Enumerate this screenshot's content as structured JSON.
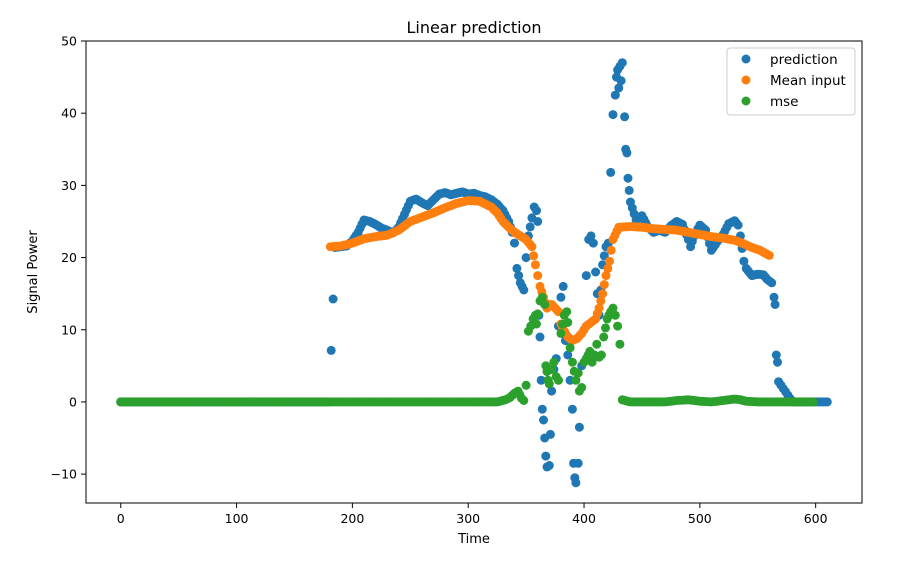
{
  "chart_data": {
    "type": "scatter",
    "title": "Linear prediction",
    "xlabel": "Time",
    "ylabel": "Signal Power",
    "xlim": [
      -30,
      640
    ],
    "ylim": [
      -14,
      50
    ],
    "xticks": [
      0,
      100,
      200,
      300,
      400,
      500,
      600
    ],
    "yticks": [
      -10,
      0,
      10,
      20,
      30,
      40,
      50
    ],
    "grid": false,
    "legend_position": "top-right",
    "series": [
      {
        "name": "prediction",
        "color": "#1f77b4",
        "points": [
          [
            0,
            0
          ],
          [
            60,
            0
          ],
          [
            120,
            0
          ],
          [
            180,
            0
          ],
          [
            185,
            21.4
          ],
          [
            195,
            21.6
          ],
          [
            200,
            22.3
          ],
          [
            205,
            23.5
          ],
          [
            210,
            25.2
          ],
          [
            215,
            25.0
          ],
          [
            220,
            24.6
          ],
          [
            225,
            24.1
          ],
          [
            230,
            23.8
          ],
          [
            235,
            23.4
          ],
          [
            240,
            24.2
          ],
          [
            245,
            26.0
          ],
          [
            250,
            27.8
          ],
          [
            255,
            28.1
          ],
          [
            260,
            27.6
          ],
          [
            265,
            27.2
          ],
          [
            270,
            28.0
          ],
          [
            275,
            28.8
          ],
          [
            280,
            29.0
          ],
          [
            285,
            28.7
          ],
          [
            290,
            28.9
          ],
          [
            295,
            29.1
          ],
          [
            300,
            28.8
          ],
          [
            305,
            28.9
          ],
          [
            310,
            28.6
          ],
          [
            315,
            28.4
          ],
          [
            320,
            28.0
          ],
          [
            325,
            27.4
          ],
          [
            330,
            26.5
          ],
          [
            335,
            25.0
          ],
          [
            338,
            23.5
          ],
          [
            340,
            22.0
          ],
          [
            342,
            18.5
          ],
          [
            345,
            16.5
          ],
          [
            348,
            15.5
          ],
          [
            350,
            20.0
          ],
          [
            352,
            23.0
          ],
          [
            355,
            25.5
          ],
          [
            357,
            27.0
          ],
          [
            359,
            26.5
          ],
          [
            360,
            25.0
          ],
          [
            361,
            12.0
          ],
          [
            362,
            9.0
          ],
          [
            363,
            3.0
          ],
          [
            364,
            -1.0
          ],
          [
            365,
            -2.5
          ],
          [
            366,
            -5.0
          ],
          [
            367,
            -7.5
          ],
          [
            368,
            -9.0
          ],
          [
            370,
            -8.8
          ],
          [
            371,
            -4.5
          ],
          [
            372,
            1.5
          ],
          [
            374,
            4.5
          ],
          [
            376,
            6.0
          ],
          [
            378,
            10.5
          ],
          [
            380,
            14.5
          ],
          [
            382,
            16.0
          ],
          [
            384,
            8.5
          ],
          [
            386,
            6.5
          ],
          [
            388,
            3.0
          ],
          [
            390,
            -1.0
          ],
          [
            391,
            -8.5
          ],
          [
            392,
            -10.5
          ],
          [
            393,
            -11.2
          ],
          [
            395,
            -8.5
          ],
          [
            396,
            -3.5
          ],
          [
            398,
            5.0
          ],
          [
            400,
            10.0
          ],
          [
            402,
            17.5
          ],
          [
            404,
            22.5
          ],
          [
            406,
            23.0
          ],
          [
            408,
            22.0
          ],
          [
            410,
            18.0
          ],
          [
            413,
            12.0
          ],
          [
            416,
            19.0
          ],
          [
            419,
            21.5
          ],
          [
            421,
            22.0
          ],
          [
            423,
            31.8
          ],
          [
            425,
            39.8
          ],
          [
            427,
            42.5
          ],
          [
            428,
            45.0
          ],
          [
            429,
            46.0
          ],
          [
            430,
            43.5
          ],
          [
            431,
            46.5
          ],
          [
            432,
            44.5
          ],
          [
            433,
            47.0
          ],
          [
            435,
            39.5
          ],
          [
            436,
            35.0
          ],
          [
            437,
            34.5
          ],
          [
            438,
            31.0
          ],
          [
            439,
            29.3
          ],
          [
            440,
            27.7
          ],
          [
            445,
            25.2
          ],
          [
            450,
            25.8
          ],
          [
            455,
            24.3
          ],
          [
            460,
            23.5
          ],
          [
            465,
            23.8
          ],
          [
            470,
            23.5
          ],
          [
            475,
            24.4
          ],
          [
            480,
            25.0
          ],
          [
            485,
            24.6
          ],
          [
            490,
            22.5
          ],
          [
            492,
            21.5
          ],
          [
            495,
            23.0
          ],
          [
            500,
            24.5
          ],
          [
            505,
            23.8
          ],
          [
            510,
            21.0
          ],
          [
            515,
            22.2
          ],
          [
            520,
            23.2
          ],
          [
            525,
            24.7
          ],
          [
            530,
            25.1
          ],
          [
            533,
            24.5
          ],
          [
            535,
            23.0
          ],
          [
            538,
            19.5
          ],
          [
            540,
            18.5
          ],
          [
            545,
            17.5
          ],
          [
            550,
            17.7
          ],
          [
            555,
            17.6
          ],
          [
            558,
            17.0
          ],
          [
            562,
            16.5
          ],
          [
            564,
            14.5
          ],
          [
            565,
            13.5
          ],
          [
            566,
            6.5
          ],
          [
            567,
            5.5
          ],
          [
            568,
            2.8
          ],
          [
            580,
            0
          ],
          [
            595,
            0
          ],
          [
            610,
            0
          ]
        ]
      },
      {
        "name": "Mean input",
        "color": "#ff7f0e",
        "points": [
          [
            181,
            21.5
          ],
          [
            190,
            21.6
          ],
          [
            200,
            22.0
          ],
          [
            210,
            22.6
          ],
          [
            220,
            22.9
          ],
          [
            230,
            23.1
          ],
          [
            240,
            23.8
          ],
          [
            250,
            25.0
          ],
          [
            260,
            25.6
          ],
          [
            270,
            26.2
          ],
          [
            280,
            26.9
          ],
          [
            290,
            27.5
          ],
          [
            300,
            27.9
          ],
          [
            310,
            27.8
          ],
          [
            320,
            27.0
          ],
          [
            325,
            26.2
          ],
          [
            330,
            25.0
          ],
          [
            335,
            24.2
          ],
          [
            340,
            23.5
          ],
          [
            345,
            23.0
          ],
          [
            350,
            22.5
          ],
          [
            355,
            21.5
          ],
          [
            358,
            19.0
          ],
          [
            360,
            17.5
          ],
          [
            362,
            16.0
          ],
          [
            365,
            14.5
          ],
          [
            368,
            13.0
          ],
          [
            370,
            13.5
          ],
          [
            372,
            13.5
          ],
          [
            375,
            13.0
          ],
          [
            378,
            12.5
          ],
          [
            380,
            10.8
          ],
          [
            383,
            9.8
          ],
          [
            386,
            9.0
          ],
          [
            390,
            8.5
          ],
          [
            394,
            8.8
          ],
          [
            398,
            9.5
          ],
          [
            402,
            10.5
          ],
          [
            406,
            11.0
          ],
          [
            410,
            11.5
          ],
          [
            413,
            13.0
          ],
          [
            416,
            15.0
          ],
          [
            419,
            17.5
          ],
          [
            422,
            19.5
          ],
          [
            425,
            22.5
          ],
          [
            430,
            24.2
          ],
          [
            440,
            24.3
          ],
          [
            450,
            24.2
          ],
          [
            460,
            24.0
          ],
          [
            470,
            23.9
          ],
          [
            480,
            23.8
          ],
          [
            490,
            23.5
          ],
          [
            500,
            23.2
          ],
          [
            510,
            22.9
          ],
          [
            520,
            22.7
          ],
          [
            530,
            22.4
          ],
          [
            538,
            21.9
          ],
          [
            545,
            21.4
          ],
          [
            552,
            21.0
          ],
          [
            560,
            20.3
          ]
        ]
      },
      {
        "name": "mse",
        "color": "#2ca02c",
        "points": [
          [
            0,
            0
          ],
          [
            50,
            0
          ],
          [
            100,
            0
          ],
          [
            150,
            0
          ],
          [
            200,
            0
          ],
          [
            250,
            0
          ],
          [
            300,
            0
          ],
          [
            325,
            0
          ],
          [
            332,
            0.3
          ],
          [
            336,
            0.6
          ],
          [
            340,
            1.2
          ],
          [
            343,
            1.5
          ],
          [
            346,
            0.5
          ],
          [
            348,
            0.2
          ],
          [
            350,
            2.3
          ],
          [
            352,
            9.8
          ],
          [
            354,
            10.5
          ],
          [
            356,
            11.5
          ],
          [
            358,
            12.0
          ],
          [
            359,
            10.8
          ],
          [
            360,
            12.2
          ],
          [
            362,
            14.0
          ],
          [
            364,
            14.5
          ],
          [
            366,
            13.5
          ],
          [
            367,
            5.0
          ],
          [
            368,
            4.2
          ],
          [
            369,
            3.0
          ],
          [
            370,
            2.5
          ],
          [
            372,
            4.5
          ],
          [
            374,
            5.5
          ],
          [
            376,
            3.5
          ],
          [
            378,
            3.0
          ],
          [
            380,
            9.5
          ],
          [
            383,
            12.0
          ],
          [
            385,
            12.5
          ],
          [
            386,
            11.0
          ],
          [
            388,
            7.5
          ],
          [
            390,
            5.5
          ],
          [
            393,
            3.0
          ],
          [
            395,
            4.0
          ],
          [
            396,
            1.5
          ],
          [
            398,
            2.0
          ],
          [
            400,
            5.5
          ],
          [
            402,
            6.0
          ],
          [
            405,
            7.0
          ],
          [
            407,
            5.5
          ],
          [
            409,
            6.5
          ],
          [
            411,
            8.0
          ],
          [
            413,
            6.2
          ],
          [
            415,
            6.5
          ],
          [
            417,
            9.0
          ],
          [
            420,
            11.5
          ],
          [
            423,
            12.5
          ],
          [
            425,
            13.0
          ],
          [
            427,
            12.0
          ],
          [
            429,
            10.5
          ],
          [
            431,
            8.0
          ],
          [
            433,
            0.3
          ],
          [
            440,
            0
          ],
          [
            450,
            0
          ],
          [
            460,
            0
          ],
          [
            470,
            0
          ],
          [
            480,
            0.2
          ],
          [
            490,
            0.3
          ],
          [
            500,
            0.1
          ],
          [
            510,
            0
          ],
          [
            520,
            0.2
          ],
          [
            530,
            0.4
          ],
          [
            535,
            0.3
          ],
          [
            540,
            0.1
          ],
          [
            550,
            0
          ],
          [
            560,
            0
          ],
          [
            570,
            0
          ],
          [
            580,
            0
          ],
          [
            590,
            0
          ],
          [
            598,
            0
          ]
        ]
      }
    ]
  }
}
